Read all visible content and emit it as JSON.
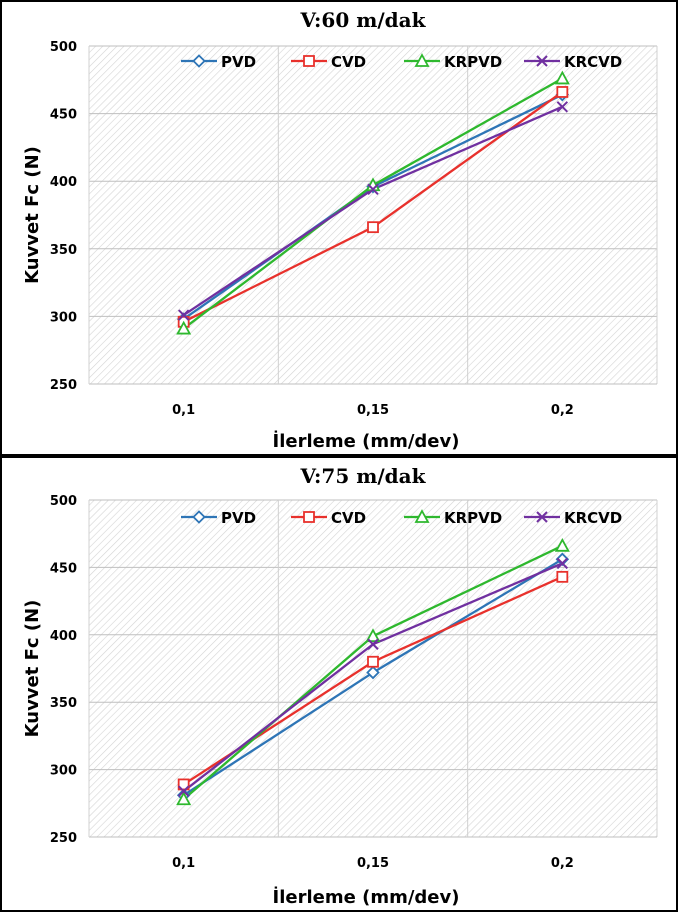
{
  "chart_data": [
    {
      "type": "line",
      "title": "V:60 m/dak",
      "xlabel": "İlerleme (mm/dev)",
      "ylabel": "Kuvvet Fc (N)",
      "categories": [
        "0,1",
        "0,15",
        "0,2"
      ],
      "y_ticks": [
        "250",
        "300",
        "350",
        "400",
        "450",
        "500"
      ],
      "ylim": [
        250,
        500
      ],
      "grid": true,
      "legend_position": "top",
      "series": [
        {
          "name": "PVD",
          "values": [
            298,
            396,
            464
          ],
          "color": "#2E75B6",
          "marker": "diamond"
        },
        {
          "name": "CVD",
          "values": [
            296,
            366,
            466
          ],
          "color": "#E8312C",
          "marker": "square"
        },
        {
          "name": "KRPVD",
          "values": [
            291,
            397,
            476
          ],
          "color": "#2EB82E",
          "marker": "triangle"
        },
        {
          "name": "KRCVD",
          "values": [
            301,
            394,
            455
          ],
          "color": "#7030A0",
          "marker": "x"
        }
      ]
    },
    {
      "type": "line",
      "title": "V:75 m/dak",
      "xlabel": "İlerleme (mm/dev)",
      "ylabel": "Kuvvet Fc (N)",
      "categories": [
        "0,1",
        "0,15",
        "0,2"
      ],
      "y_ticks": [
        "250",
        "300",
        "350",
        "400",
        "450",
        "500"
      ],
      "ylim": [
        250,
        500
      ],
      "grid": true,
      "legend_position": "top",
      "series": [
        {
          "name": "PVD",
          "values": [
            281,
            372,
            456
          ],
          "color": "#2E75B6",
          "marker": "diamond"
        },
        {
          "name": "CVD",
          "values": [
            289,
            380,
            443
          ],
          "color": "#E8312C",
          "marker": "square"
        },
        {
          "name": "KRPVD",
          "values": [
            278,
            399,
            466
          ],
          "color": "#2EB82E",
          "marker": "triangle"
        },
        {
          "name": "KRCVD",
          "values": [
            284,
            393,
            453
          ],
          "color": "#7030A0",
          "marker": "x"
        }
      ]
    }
  ]
}
